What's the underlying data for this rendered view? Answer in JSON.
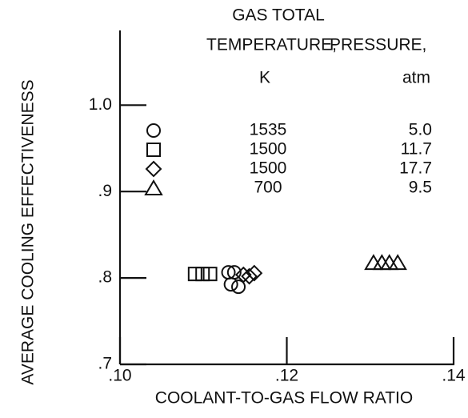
{
  "chart_data": {
    "type": "scatter",
    "xlabel": "COOLANT-TO-GAS FLOW RATIO",
    "ylabel": "AVERAGE COOLING EFFECTIVENESS",
    "xlim": [
      0.1,
      0.14
    ],
    "ylim": [
      0.7,
      1.08
    ],
    "xticks": [
      {
        "value": 0.1,
        "label": ".10"
      },
      {
        "value": 0.12,
        "label": ".12"
      },
      {
        "value": 0.14,
        "label": ".14"
      }
    ],
    "yticks": [
      {
        "value": 0.7,
        "label": ".7"
      },
      {
        "value": 0.8,
        "label": ".8"
      },
      {
        "value": 0.9,
        "label": ".9"
      },
      {
        "value": 1.0,
        "label": "1.0"
      }
    ],
    "legend": {
      "header": [
        "GAS TOTAL",
        "TEMPERATURE,",
        "PRESSURE,"
      ],
      "units": [
        "K",
        "atm"
      ]
    },
    "series": [
      {
        "marker": "circle",
        "temperature": "1535",
        "pressure": "5.0",
        "x": [
          0.113,
          0.1137,
          0.1133,
          0.1142
        ],
        "values": [
          0.8065,
          0.8065,
          0.7926,
          0.7898
        ]
      },
      {
        "marker": "square",
        "temperature": "1500",
        "pressure": "11.7",
        "x": [
          0.109,
          0.1099,
          0.1108
        ],
        "values": [
          0.8046,
          0.8046,
          0.8046
        ]
      },
      {
        "marker": "diamond",
        "temperature": "1500",
        "pressure": "17.7",
        "x": [
          0.1148,
          0.1155,
          0.1161
        ],
        "values": [
          0.8037,
          0.8019,
          0.8056
        ]
      },
      {
        "marker": "triangle",
        "temperature": "700",
        "pressure": "9.5",
        "x": [
          0.1304,
          0.1314,
          0.1323,
          0.1333
        ],
        "values": [
          0.8176,
          0.8176,
          0.8176,
          0.8176
        ]
      }
    ]
  }
}
